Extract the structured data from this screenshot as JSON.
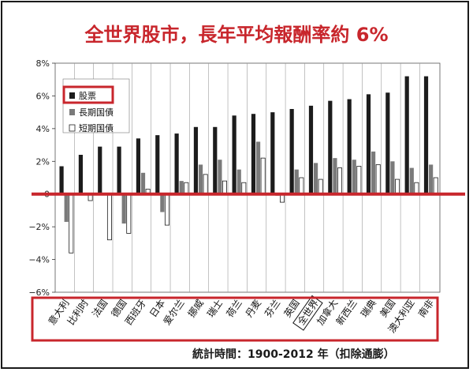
{
  "title": "全世界股市，長年平均報酬率約 6%",
  "footnote": "統計時間：1900-2012 年（扣除通膨）",
  "colors": {
    "title": "#c8262c",
    "highlight": "#c8262c",
    "stocks": "#1c1c1c",
    "bonds": "#7a7a7a",
    "bills": "#ffffff"
  },
  "chart_data": {
    "type": "bar",
    "title": "",
    "xlabel": "",
    "ylabel": "",
    "ylim": [
      -6,
      8
    ],
    "y_ticks": [
      "8%",
      "6%",
      "4%",
      "2%",
      "0",
      "−2%",
      "−4%",
      "−6%"
    ],
    "grid": "vertical lines",
    "legend_position": "top-left",
    "highlighted_legend_entry": "股票",
    "boxed_category": "全世界",
    "categories": [
      "意大利",
      "比利时",
      "法国",
      "德国",
      "西班牙",
      "日本",
      "爱尔兰",
      "挪威",
      "瑞士",
      "荷兰",
      "丹麦",
      "芬兰",
      "英国",
      "全世界",
      "加拿大",
      "新西兰",
      "瑞典",
      "美国",
      "澳大利亚",
      "南非"
    ],
    "series": [
      {
        "name": "股票",
        "values": [
          1.7,
          2.4,
          2.9,
          2.9,
          3.4,
          3.6,
          3.7,
          4.1,
          4.1,
          4.8,
          4.9,
          5.0,
          5.2,
          5.4,
          5.7,
          5.8,
          6.1,
          6.2,
          7.2,
          7.2
        ]
      },
      {
        "name": "長期国債",
        "values": [
          -1.7,
          0.0,
          0.0,
          -1.8,
          1.3,
          -1.1,
          0.8,
          1.8,
          2.1,
          1.5,
          3.2,
          -0.1,
          1.5,
          1.9,
          2.2,
          2.1,
          2.6,
          2.0,
          1.6,
          1.8
        ]
      },
      {
        "name": "短期国債",
        "values": [
          -3.6,
          -0.4,
          -2.8,
          -2.4,
          0.3,
          -1.9,
          0.7,
          1.2,
          0.8,
          0.7,
          2.2,
          -0.5,
          1.0,
          0.9,
          1.6,
          1.7,
          1.8,
          0.9,
          0.7,
          1.0
        ]
      }
    ]
  }
}
